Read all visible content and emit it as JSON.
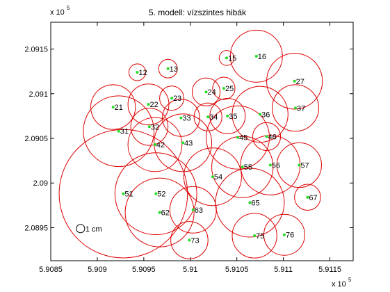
{
  "chart_data": {
    "type": "scatter",
    "title": "5. modell: vízszintes hibák",
    "xlabel": "",
    "ylabel": "",
    "x_exponent_label": "x 10",
    "x_exponent_power": "5",
    "y_exponent_label": "x 10",
    "y_exponent_power": "5",
    "xlim": [
      590850,
      591175
    ],
    "ylim": [
      208913,
      209180
    ],
    "x_ticks": [
      590850,
      590900,
      590950,
      591000,
      591050,
      591100,
      591150
    ],
    "x_tick_labels": [
      "5.9085",
      "5.909",
      "5.9095",
      "5.91",
      "5.9105",
      "5.911",
      "5.9115"
    ],
    "y_ticks": [
      208950,
      209000,
      209050,
      209100,
      209150
    ],
    "y_tick_labels": [
      "2.0895",
      "2.09",
      "2.0905",
      "2.091",
      "2.0915"
    ],
    "grid": false,
    "colors": {
      "ellipse": "#dd0000",
      "point": "#22dd22",
      "scale_circle": "#000000"
    },
    "scale_label": "1 cm",
    "scale_center": [
      590882,
      208949
    ],
    "scale_radius": 4.5,
    "points": [
      {
        "label": "12",
        "x": 590943,
        "y": 209124,
        "r": 9
      },
      {
        "label": "13",
        "x": 590976,
        "y": 209128,
        "r": 10
      },
      {
        "label": "15",
        "x": 591039,
        "y": 209140,
        "r": 8
      },
      {
        "label": "16",
        "x": 591071,
        "y": 209142,
        "r": 28
      },
      {
        "label": "21",
        "x": 590917,
        "y": 209085,
        "r": 24
      },
      {
        "label": "22",
        "x": 590955,
        "y": 209088,
        "r": 22
      },
      {
        "label": "23",
        "x": 590980,
        "y": 209095,
        "r": 13
      },
      {
        "label": "24",
        "x": 591017,
        "y": 209102,
        "r": 15
      },
      {
        "label": "25",
        "x": 591036,
        "y": 209106,
        "r": 12
      },
      {
        "label": "27",
        "x": 591112,
        "y": 209114,
        "r": 30
      },
      {
        "label": "31",
        "x": 590923,
        "y": 209058,
        "r": 38
      },
      {
        "label": "32",
        "x": 590956,
        "y": 209063,
        "r": 20
      },
      {
        "label": "33",
        "x": 590990,
        "y": 209073,
        "r": 20
      },
      {
        "label": "34",
        "x": 591019,
        "y": 209074,
        "r": 15
      },
      {
        "label": "35",
        "x": 591040,
        "y": 209075,
        "r": 19
      },
      {
        "label": "36",
        "x": 591075,
        "y": 209077,
        "r": 30
      },
      {
        "label": "37",
        "x": 591113,
        "y": 209084,
        "r": 25
      },
      {
        "label": "42",
        "x": 590962,
        "y": 209043,
        "r": 29
      },
      {
        "label": "43",
        "x": 590992,
        "y": 209045,
        "r": 31
      },
      {
        "label": "45",
        "x": 591051,
        "y": 209051,
        "r": 34
      },
      {
        "label": "46",
        "x": 591082,
        "y": 209052,
        "r": 15
      },
      {
        "label": "51",
        "x": 590928,
        "y": 208988,
        "r": 69
      },
      {
        "label": "52",
        "x": 590963,
        "y": 208988,
        "r": 44
      },
      {
        "label": "54",
        "x": 591024,
        "y": 209007,
        "r": 31
      },
      {
        "label": "55",
        "x": 591056,
        "y": 209018,
        "r": 33
      },
      {
        "label": "56",
        "x": 591086,
        "y": 209020,
        "r": 32
      },
      {
        "label": "57",
        "x": 591117,
        "y": 209020,
        "r": 24
      },
      {
        "label": "62",
        "x": 590967,
        "y": 208967,
        "r": 37
      },
      {
        "label": "63",
        "x": 591003,
        "y": 208970,
        "r": 25
      },
      {
        "label": "65",
        "x": 591064,
        "y": 208978,
        "r": 37
      },
      {
        "label": "67",
        "x": 591126,
        "y": 208984,
        "r": 14
      },
      {
        "label": "73",
        "x": 590999,
        "y": 208936,
        "r": 20
      },
      {
        "label": "75",
        "x": 591069,
        "y": 208941,
        "r": 24
      },
      {
        "label": "76",
        "x": 591101,
        "y": 208942,
        "r": 22
      }
    ]
  }
}
